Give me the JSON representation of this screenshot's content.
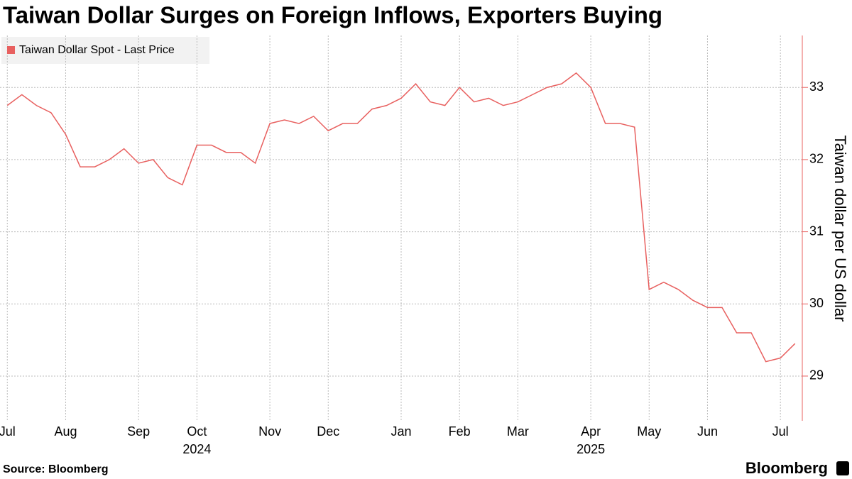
{
  "chart_data": {
    "type": "line",
    "title": "Taiwan Dollar Surges on Foreign Inflows, Exporters Buying",
    "y_label": "Taiwan dollar per US dollar",
    "source": "Source: Bloomberg",
    "brand": "Bloomberg",
    "categories": [
      "Jul",
      null,
      null,
      null,
      "Aug",
      null,
      null,
      null,
      null,
      "Sep",
      null,
      null,
      null,
      "Oct",
      null,
      null,
      null,
      null,
      "Nov",
      null,
      null,
      null,
      "Dec",
      null,
      null,
      null,
      null,
      "Jan",
      null,
      null,
      null,
      "Feb",
      null,
      null,
      null,
      "Mar",
      null,
      null,
      null,
      null,
      "Apr",
      null,
      null,
      null,
      "May",
      null,
      null,
      null,
      "Jun",
      null,
      null,
      null,
      null,
      "Jul",
      null
    ],
    "category_years": [
      null,
      null,
      null,
      null,
      null,
      null,
      null,
      null,
      null,
      null,
      null,
      null,
      null,
      "2024",
      null,
      null,
      null,
      null,
      null,
      null,
      null,
      null,
      null,
      null,
      null,
      null,
      null,
      null,
      null,
      null,
      null,
      null,
      null,
      null,
      null,
      null,
      null,
      null,
      null,
      null,
      "2025",
      null,
      null,
      null,
      null,
      null,
      null,
      null,
      null,
      null,
      null,
      null,
      null,
      null,
      null
    ],
    "series": [
      {
        "name": "Taiwan Dollar Spot - Last Price",
        "color": "#e8605f",
        "values": [
          32.75,
          32.9,
          32.75,
          32.65,
          32.35,
          31.9,
          31.9,
          32.0,
          32.15,
          31.95,
          32.0,
          31.75,
          31.65,
          32.2,
          32.2,
          32.1,
          32.1,
          31.95,
          32.5,
          32.55,
          32.5,
          32.6,
          32.4,
          32.5,
          32.5,
          32.7,
          32.75,
          32.85,
          33.05,
          32.8,
          32.75,
          33.0,
          32.8,
          32.85,
          32.75,
          32.8,
          32.9,
          33.0,
          33.05,
          33.2,
          33.0,
          32.5,
          32.5,
          32.45,
          30.2,
          30.3,
          30.2,
          30.05,
          29.95,
          29.95,
          29.6,
          29.6,
          29.2,
          29.25,
          29.45
        ]
      }
    ],
    "ylim": [
      28.38,
      33.72
    ],
    "yticks": [
      29,
      30,
      31,
      32,
      33
    ],
    "grid": true,
    "legend": "top-left"
  }
}
